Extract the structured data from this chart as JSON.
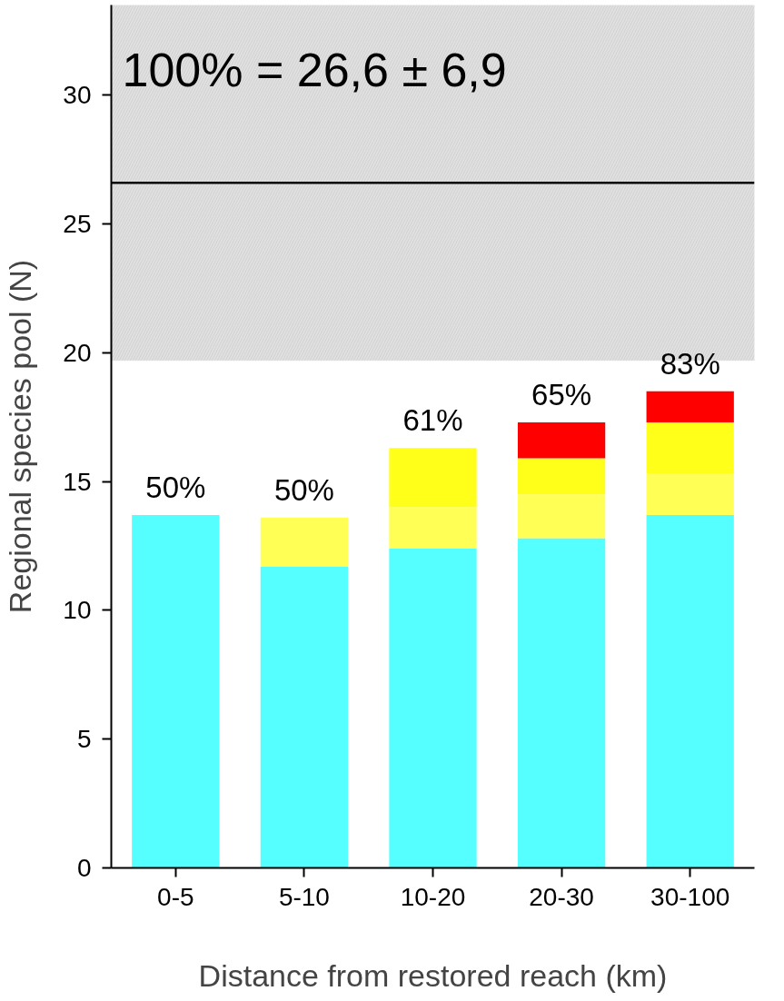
{
  "chart_data": {
    "type": "bar",
    "stacked": true,
    "xlabel": "Distance from restored reach (km)",
    "ylabel": "Regional species pool (N)",
    "categories": [
      "0-5",
      "5-10",
      "10-20",
      "20-30",
      "30-100"
    ],
    "series": [
      {
        "color": "#55ffff",
        "values": [
          13.7,
          11.7,
          12.4,
          12.8,
          13.7
        ]
      },
      {
        "color": "#ffff55",
        "values": [
          null,
          1.9,
          1.6,
          1.7,
          1.6
        ]
      },
      {
        "color": "#ffff1a",
        "values": [
          null,
          null,
          2.3,
          1.4,
          2.0
        ]
      },
      {
        "color": "#ff0000",
        "values": [
          null,
          null,
          null,
          1.4,
          1.2
        ]
      }
    ],
    "ylim": [
      0,
      33.5
    ],
    "yticks": [
      0,
      5,
      10,
      15,
      20,
      25,
      30
    ],
    "grid": false,
    "ref_lines": [
      {
        "axis": "y",
        "value": 26.6,
        "color": "#000000",
        "line_style": "solid"
      }
    ],
    "bands": [
      {
        "axis": "y",
        "from": 19.7,
        "to": 33.5,
        "color": "#e0e0e0"
      }
    ],
    "annotations": [
      {
        "text": "100% = 26,6 ± 6,9"
      },
      {
        "text": "50%",
        "x": "0-5",
        "y": 13.7
      },
      {
        "text": "50%",
        "x": "5-10",
        "y": 13.6
      },
      {
        "text": "61%",
        "x": "10-20",
        "y": 16.3
      },
      {
        "text": "65%",
        "x": "20-30",
        "y": 17.3
      },
      {
        "text": "83%",
        "x": "30-100",
        "y": 18.5
      }
    ]
  }
}
